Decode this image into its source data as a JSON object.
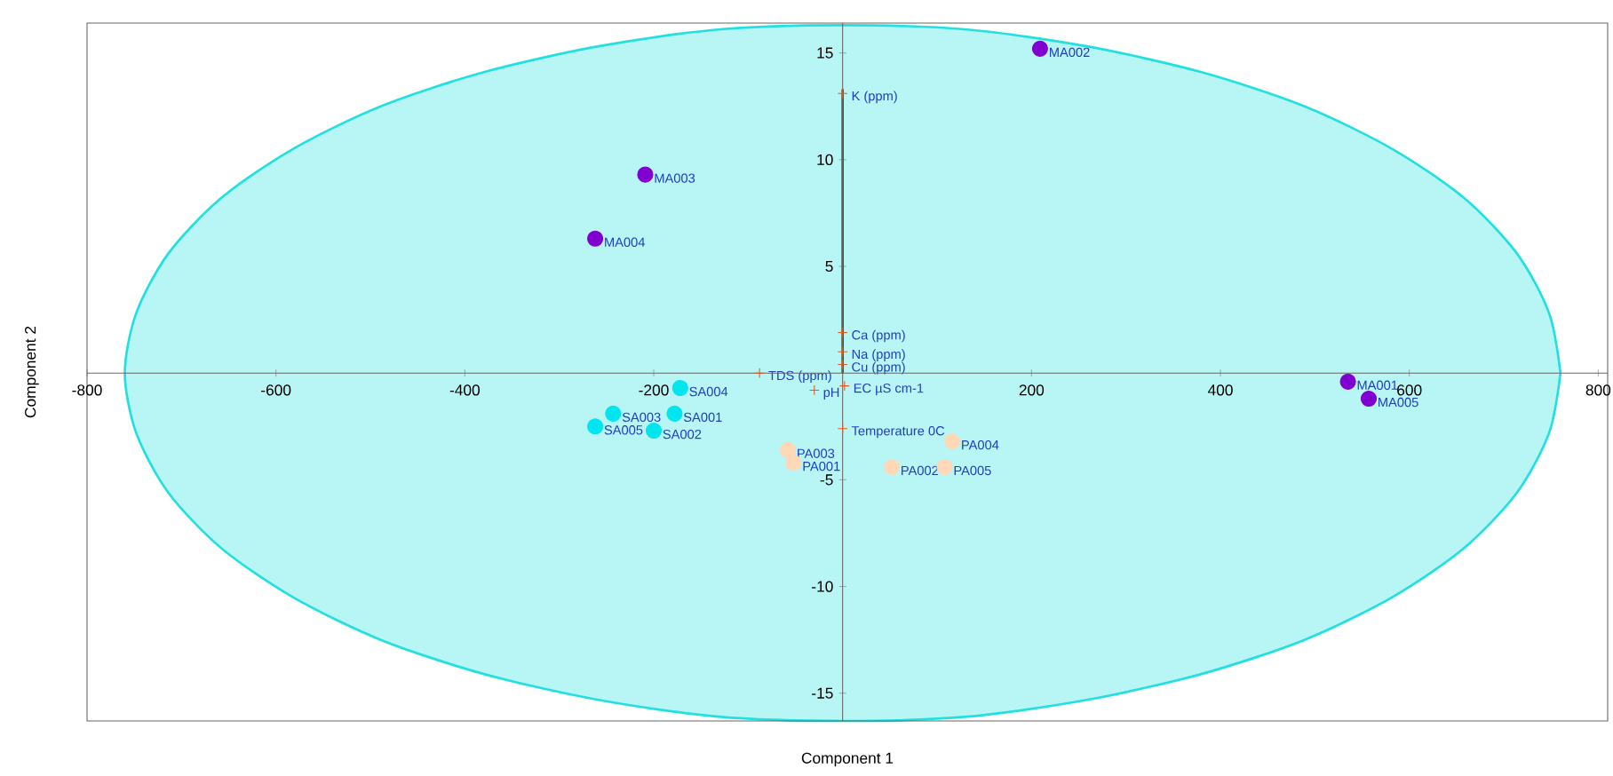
{
  "chart_data": {
    "type": "scatter",
    "xlabel": "Component 1",
    "ylabel": "Component 2",
    "xlim": [
      -800,
      810
    ],
    "ylim": [
      -16.3,
      16.4
    ],
    "xticks": [
      -800,
      -600,
      -400,
      -200,
      200,
      400,
      600,
      800
    ],
    "yticks": [
      -15,
      -10,
      -5,
      5,
      10,
      15
    ],
    "series": [
      {
        "type": "area",
        "color": "#22e0e0",
        "x": [
          760,
          748,
          714,
          658,
          582,
          489,
          380,
          260,
          132,
          0,
          -132,
          -260,
          -380,
          -489,
          -582,
          -658,
          -714,
          -748,
          -760,
          -748,
          -714,
          -658,
          -582,
          -489,
          -380,
          -260,
          -132,
          0,
          132,
          260,
          380,
          489,
          582,
          658,
          714,
          748,
          760
        ],
        "values": [
          0,
          2.8,
          5.6,
          8.2,
          10.5,
          12.5,
          14.1,
          15.3,
          16.1,
          16.3,
          16.1,
          15.3,
          14.1,
          12.5,
          10.5,
          8.2,
          5.6,
          2.8,
          0,
          -2.8,
          -5.6,
          -8.2,
          -10.5,
          -12.5,
          -14.1,
          -15.3,
          -16.1,
          -16.3,
          -16.1,
          -15.3,
          -14.1,
          -12.5,
          -10.5,
          -8.2,
          -5.6,
          -2.8,
          0
        ]
      },
      {
        "type": "line",
        "color": "#1a6b1a",
        "x": [
          0,
          0
        ],
        "values": [
          0,
          13.3
        ]
      },
      {
        "marker": "circle",
        "color": "#8000d0",
        "x": [
          535,
          209,
          -209,
          -262,
          557
        ],
        "values": [
          -0.4,
          15.2,
          9.3,
          6.3,
          -1.2
        ],
        "value_labels": [
          "MA001",
          "MA002",
          "MA003",
          "MA004",
          "MA005"
        ]
      },
      {
        "marker": "circle",
        "color": "#00e5ee",
        "x": [
          -178,
          -200,
          -243,
          -172,
          -262
        ],
        "values": [
          -1.9,
          -2.7,
          -1.9,
          -0.7,
          -2.5
        ],
        "value_labels": [
          "SA001",
          "SA002",
          "SA003",
          "SA004",
          "SA005"
        ]
      },
      {
        "marker": "circle",
        "color": "#ffd8b8",
        "x": [
          -52,
          52,
          -58,
          116,
          108
        ],
        "values": [
          -4.2,
          -4.4,
          -3.6,
          -3.2,
          -4.4
        ],
        "value_labels": [
          "PA001",
          "PA002",
          "PA003",
          "PA004",
          "PA005"
        ]
      },
      {
        "marker": "cross",
        "color": "#e05a20",
        "x": [
          0,
          0,
          0,
          0,
          -88,
          2,
          -30,
          0
        ],
        "values": [
          13.1,
          1.9,
          1.0,
          0.4,
          0,
          -0.6,
          -0.8,
          -2.6
        ],
        "value_labels": [
          "K (ppm)",
          "Ca (ppm)",
          "Na (ppm)",
          "Cu (ppm)",
          "TDS (ppm)",
          "EC µS cm-1",
          "pH",
          "Temperature 0C"
        ]
      }
    ]
  }
}
